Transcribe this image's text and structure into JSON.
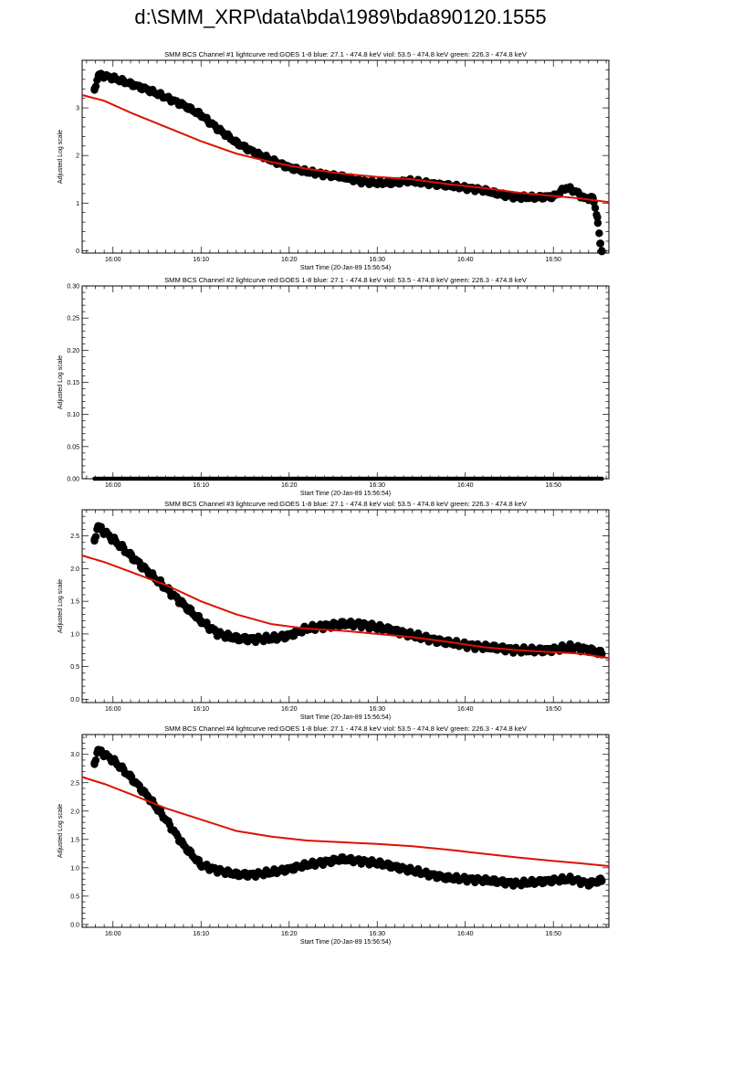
{
  "page": {
    "title": "d:\\SMM_XRP\\data\\bda\\1989\\bda890120.1555"
  },
  "colors": {
    "goes": "#dd1100",
    "data": "#000000",
    "axes": "#000000"
  },
  "chart_data": [
    {
      "type": "scatter",
      "title": "SMM BCS Channel #1 lightcurve  red:GOES 1-8  blue: 27.1 - 474.8 keV  viol: 53.5 - 474.8 keV  green: 226.3 - 474.8 keV",
      "xlabel": "Start Time (20-Jan-89 15:56:54)",
      "ylabel": "Adjusted Log scale",
      "xlim": [
        -3.5,
        56.3
      ],
      "ylim": [
        -0.05,
        4.0
      ],
      "yticks": [
        0,
        1,
        2,
        3
      ],
      "ytick_labels": [
        "0",
        "1",
        "2",
        "3"
      ],
      "xticks": [
        0,
        10,
        20,
        30,
        40,
        50
      ],
      "xtick_labels": [
        "16:00",
        "16:10",
        "16:20",
        "16:30",
        "16:40",
        "16:50"
      ],
      "series": [
        {
          "points": [
            [
              -2.1,
              3.4
            ],
            [
              -1.6,
              3.7
            ],
            [
              0,
              3.63
            ],
            [
              4,
              3.38
            ],
            [
              8,
              3.06
            ],
            [
              10,
              2.85
            ],
            [
              12,
              2.55
            ],
            [
              14,
              2.27
            ],
            [
              16,
              2.07
            ],
            [
              18,
              1.9
            ],
            [
              20,
              1.75
            ],
            [
              22,
              1.66
            ],
            [
              24,
              1.6
            ],
            [
              26,
              1.55
            ],
            [
              28,
              1.46
            ],
            [
              30,
              1.42
            ],
            [
              32,
              1.43
            ],
            [
              33.5,
              1.47
            ],
            [
              36,
              1.41
            ],
            [
              38,
              1.37
            ],
            [
              40,
              1.32
            ],
            [
              42,
              1.27
            ],
            [
              44,
              1.18
            ],
            [
              46,
              1.12
            ],
            [
              48,
              1.12
            ],
            [
              50,
              1.14
            ],
            [
              51.5,
              1.32
            ],
            [
              52.5,
              1.25
            ],
            [
              53.5,
              1.1
            ],
            [
              54.5,
              1.1
            ],
            [
              55,
              0.7
            ],
            [
              55.3,
              0.15
            ],
            [
              55.5,
              0.0
            ]
          ]
        },
        {
          "points": [
            [
              -3.5,
              3.27
            ],
            [
              -1,
              3.15
            ],
            [
              2,
              2.9
            ],
            [
              6,
              2.6
            ],
            [
              10,
              2.3
            ],
            [
              14,
              2.04
            ],
            [
              18,
              1.86
            ],
            [
              22,
              1.72
            ],
            [
              26,
              1.62
            ],
            [
              30,
              1.55
            ],
            [
              34,
              1.5
            ],
            [
              38,
              1.4
            ],
            [
              42,
              1.32
            ],
            [
              46,
              1.22
            ],
            [
              50,
              1.15
            ],
            [
              53,
              1.1
            ],
            [
              56.3,
              1.02
            ]
          ]
        }
      ]
    },
    {
      "type": "scatter",
      "title": "SMM BCS Channel #2 lightcurve  red:GOES 1-8  blue: 27.1 - 474.8 keV  viol: 53.5 - 474.8 keV  green: 226.3 - 474.8 keV",
      "xlabel": "Start Time (20-Jan-89 15:56:54)",
      "ylabel": "Adjusted Log scale",
      "xlim": [
        -3.5,
        56.3
      ],
      "ylim": [
        0,
        0.3
      ],
      "yticks": [
        0,
        0.05,
        0.1,
        0.15,
        0.2,
        0.25,
        0.3
      ],
      "ytick_labels": [
        "0.00",
        "0.05",
        "0.10",
        "0.15",
        "0.20",
        "0.25",
        "0.30"
      ],
      "xticks": [
        0,
        10,
        20,
        30,
        40,
        50
      ],
      "xtick_labels": [
        "16:00",
        "16:10",
        "16:20",
        "16:30",
        "16:40",
        "16:50"
      ],
      "series": [
        {
          "points": [
            [
              -2.1,
              0
            ],
            [
              55.5,
              0
            ]
          ]
        }
      ]
    },
    {
      "type": "scatter",
      "title": "SMM BCS Channel #3 lightcurve  red:GOES 1-8  blue: 27.1 - 474.8 keV  viol: 53.5 - 474.8 keV  green: 226.3 - 474.8 keV",
      "xlabel": "Start Time (20-Jan-89 15:56:54)",
      "ylabel": "Adjusted Log scale",
      "xlim": [
        -3.5,
        56.3
      ],
      "ylim": [
        -0.05,
        2.9
      ],
      "yticks": [
        0,
        0.5,
        1,
        1.5,
        2,
        2.5
      ],
      "ytick_labels": [
        "0.0",
        "0.5",
        "1.0",
        "1.5",
        "2.0",
        "2.5"
      ],
      "xticks": [
        0,
        10,
        20,
        30,
        40,
        50
      ],
      "xtick_labels": [
        "16:00",
        "16:10",
        "16:20",
        "16:30",
        "16:40",
        "16:50"
      ],
      "series": [
        {
          "points": [
            [
              -2.1,
              2.45
            ],
            [
              -1.7,
              2.65
            ],
            [
              0,
              2.45
            ],
            [
              2,
              2.2
            ],
            [
              4,
              1.95
            ],
            [
              6,
              1.7
            ],
            [
              8,
              1.45
            ],
            [
              10,
              1.2
            ],
            [
              12,
              1.0
            ],
            [
              14,
              0.93
            ],
            [
              16,
              0.92
            ],
            [
              18,
              0.93
            ],
            [
              20,
              0.98
            ],
            [
              22,
              1.08
            ],
            [
              24,
              1.12
            ],
            [
              26,
              1.15
            ],
            [
              28,
              1.15
            ],
            [
              30,
              1.1
            ],
            [
              32,
              1.05
            ],
            [
              34,
              0.98
            ],
            [
              36,
              0.92
            ],
            [
              38,
              0.87
            ],
            [
              40,
              0.83
            ],
            [
              42,
              0.8
            ],
            [
              44,
              0.78
            ],
            [
              46,
              0.75
            ],
            [
              48,
              0.75
            ],
            [
              50,
              0.76
            ],
            [
              52,
              0.8
            ],
            [
              54,
              0.76
            ],
            [
              55.5,
              0.7
            ]
          ]
        },
        {
          "points": [
            [
              -3.5,
              2.2
            ],
            [
              -1,
              2.1
            ],
            [
              2,
              1.95
            ],
            [
              6,
              1.75
            ],
            [
              10,
              1.5
            ],
            [
              14,
              1.3
            ],
            [
              18,
              1.15
            ],
            [
              22,
              1.08
            ],
            [
              26,
              1.05
            ],
            [
              30,
              1.0
            ],
            [
              34,
              0.95
            ],
            [
              38,
              0.88
            ],
            [
              42,
              0.8
            ],
            [
              46,
              0.75
            ],
            [
              50,
              0.72
            ],
            [
              53,
              0.7
            ],
            [
              56.3,
              0.63
            ]
          ]
        }
      ]
    },
    {
      "type": "scatter",
      "title": "SMM BCS Channel #4 lightcurve  red:GOES 1-8  blue: 27.1 - 474.8 keV  viol: 53.5 - 474.8 keV  green: 226.3 - 474.8 keV",
      "xlabel": "Start Time (20-Jan-89 15:56:54)",
      "ylabel": "Adjusted Log scale",
      "xlim": [
        -3.5,
        56.3
      ],
      "ylim": [
        -0.05,
        3.35
      ],
      "yticks": [
        0,
        0.5,
        1,
        1.5,
        2,
        2.5,
        3
      ],
      "ytick_labels": [
        "0.0",
        "0.5",
        "1.0",
        "1.5",
        "2.0",
        "2.5",
        "3.0"
      ],
      "xticks": [
        0,
        10,
        20,
        30,
        40,
        50
      ],
      "xtick_labels": [
        "16:00",
        "16:10",
        "16:20",
        "16:30",
        "16:40",
        "16:50"
      ],
      "series": [
        {
          "points": [
            [
              -2.1,
              2.85
            ],
            [
              -1.7,
              3.08
            ],
            [
              0,
              2.9
            ],
            [
              2,
              2.6
            ],
            [
              4,
              2.25
            ],
            [
              6,
              1.85
            ],
            [
              8,
              1.4
            ],
            [
              10,
              1.05
            ],
            [
              12,
              0.95
            ],
            [
              14,
              0.88
            ],
            [
              16,
              0.88
            ],
            [
              18,
              0.92
            ],
            [
              20,
              0.98
            ],
            [
              22,
              1.05
            ],
            [
              24,
              1.1
            ],
            [
              26,
              1.15
            ],
            [
              28,
              1.12
            ],
            [
              30,
              1.08
            ],
            [
              32,
              1.02
            ],
            [
              34,
              0.95
            ],
            [
              36,
              0.88
            ],
            [
              38,
              0.82
            ],
            [
              40,
              0.8
            ],
            [
              42,
              0.78
            ],
            [
              44,
              0.75
            ],
            [
              46,
              0.72
            ],
            [
              48,
              0.75
            ],
            [
              50,
              0.78
            ],
            [
              52,
              0.8
            ],
            [
              54,
              0.72
            ],
            [
              55.5,
              0.78
            ]
          ]
        },
        {
          "points": [
            [
              -3.5,
              2.6
            ],
            [
              -1,
              2.48
            ],
            [
              2,
              2.3
            ],
            [
              6,
              2.05
            ],
            [
              10,
              1.85
            ],
            [
              14,
              1.65
            ],
            [
              18,
              1.55
            ],
            [
              22,
              1.48
            ],
            [
              26,
              1.45
            ],
            [
              30,
              1.42
            ],
            [
              34,
              1.38
            ],
            [
              38,
              1.32
            ],
            [
              42,
              1.25
            ],
            [
              46,
              1.18
            ],
            [
              50,
              1.12
            ],
            [
              53,
              1.08
            ],
            [
              56.3,
              1.03
            ]
          ]
        }
      ]
    }
  ]
}
